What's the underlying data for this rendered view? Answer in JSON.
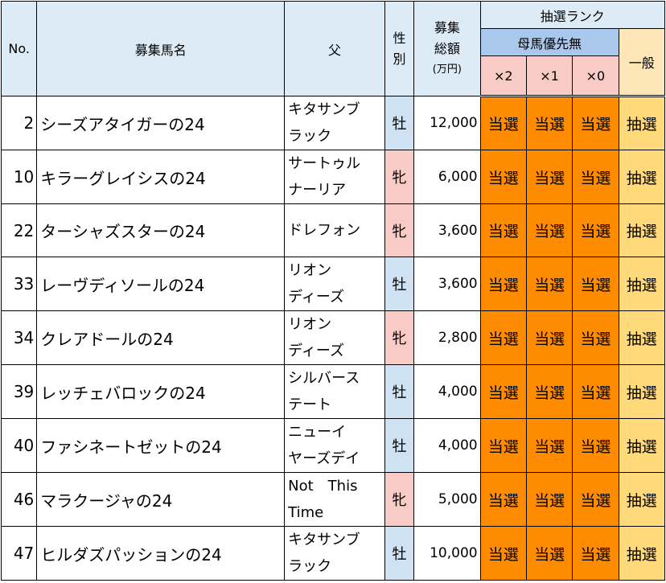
{
  "header": {
    "no": "No.",
    "name": "募集馬名",
    "sire": "父",
    "sex_line1": "性",
    "sex_line2": "別",
    "amount_line1": "募集",
    "amount_line2": "総額",
    "amount_unit": "(万円)",
    "rank_title": "抽選ランク",
    "rank_sub": "母馬優先無",
    "col_x2": "×2",
    "col_x1": "×1",
    "col_x0": "×0",
    "col_general": "一般"
  },
  "rows": [
    {
      "no": "2",
      "name": "シーズアタイガーの24",
      "sire_line1": "キタサンブ",
      "sire_line2": "ラック",
      "sex": "牡",
      "sex_type": "male",
      "amount": "12,000",
      "x2": "当選",
      "x1": "当選",
      "x0": "当選",
      "general": "抽選"
    },
    {
      "no": "10",
      "name": "キラーグレイシスの24",
      "sire_line1": "サートゥル",
      "sire_line2": "ナーリア",
      "sex": "牝",
      "sex_type": "female",
      "amount": "6,000",
      "x2": "当選",
      "x1": "当選",
      "x0": "当選",
      "general": "抽選"
    },
    {
      "no": "22",
      "name": "ターシャズスターの24",
      "sire_line1": "ドレフォン",
      "sire_line2": "",
      "sex": "牝",
      "sex_type": "female",
      "amount": "3,600",
      "x2": "当選",
      "x1": "当選",
      "x0": "当選",
      "general": "抽選"
    },
    {
      "no": "33",
      "name": "レーヴディソールの24",
      "sire_line1": "リオン",
      "sire_line2": "ディーズ",
      "sex": "牡",
      "sex_type": "male",
      "amount": "3,600",
      "x2": "当選",
      "x1": "当選",
      "x0": "当選",
      "general": "抽選"
    },
    {
      "no": "34",
      "name": "クレアドールの24",
      "sire_line1": "リオン",
      "sire_line2": "ディーズ",
      "sex": "牝",
      "sex_type": "female",
      "amount": "2,800",
      "x2": "当選",
      "x1": "当選",
      "x0": "当選",
      "general": "抽選"
    },
    {
      "no": "39",
      "name": "レッチェバロックの24",
      "sire_line1": "シルバース",
      "sire_line2": "テート",
      "sex": "牡",
      "sex_type": "male",
      "amount": "4,000",
      "x2": "当選",
      "x1": "当選",
      "x0": "当選",
      "general": "抽選"
    },
    {
      "no": "40",
      "name": "ファシネートゼットの24",
      "sire_line1": "ニューイ",
      "sire_line2": "ヤーズデイ",
      "sex": "牡",
      "sex_type": "male",
      "amount": "4,000",
      "x2": "当選",
      "x1": "当選",
      "x0": "当選",
      "general": "抽選"
    },
    {
      "no": "46",
      "name": "マラクージャの24",
      "sire_line1": "Not　This",
      "sire_line2": "Time",
      "sex": "牝",
      "sex_type": "female",
      "amount": "5,000",
      "x2": "当選",
      "x1": "当選",
      "x0": "当選",
      "general": "抽選"
    },
    {
      "no": "47",
      "name": "ヒルダズパッションの24",
      "sire_line1": "キタサンブ",
      "sire_line2": "ラック",
      "sex": "牡",
      "sex_type": "male",
      "amount": "10,000",
      "x2": "当選",
      "x1": "当選",
      "x0": "当選",
      "general": "抽選"
    }
  ],
  "colors": {
    "header_bg": "#ddebf7",
    "rank_sub_bg": "#a9c8ec",
    "mult_bg": "#f8cbc6",
    "general_bg": "#fde6b8",
    "win_bg": "#ff8c00",
    "lot_bg": "#ffd97a",
    "male_bg": "#cfe2f3",
    "female_bg": "#f8cbc6"
  }
}
